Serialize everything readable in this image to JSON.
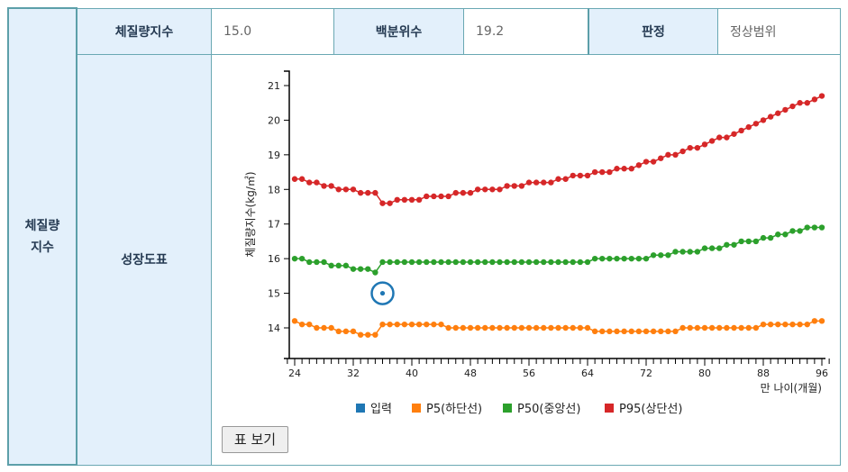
{
  "summary": {
    "group_label": "체질량\n지수",
    "bmi_label": "체질량지수",
    "bmi_value": "15.0",
    "percentile_label": "백분위수",
    "percentile_value": "19.2",
    "judgement_label": "판정",
    "judgement_value": "정상범위",
    "chart_label": "성장도표"
  },
  "table_button": "표 보기",
  "colors": {
    "border": "#5c9fa9",
    "header_bg": "#e3f0fb",
    "input": "#1f77b4",
    "p5": "#ff7f0e",
    "p50": "#2ca02c",
    "p95": "#d62728"
  },
  "chart_data": {
    "type": "line",
    "ylabel": "체질량지수(kg/㎡)",
    "xlabel": "만 나이(개월)",
    "x_range": [
      24,
      96
    ],
    "y_ticks": [
      14,
      15,
      16,
      17,
      18,
      19,
      20,
      21
    ],
    "x_ticks": [
      24,
      32,
      40,
      48,
      56,
      64,
      72,
      80,
      88,
      96
    ],
    "grid": false,
    "legend_position": "bottom",
    "legend": [
      "입력",
      "P5(하단선)",
      "P50(중앙선)",
      "P95(상단선)"
    ],
    "input_point": {
      "name": "입력",
      "x": 36,
      "y": 15.0
    },
    "x": [
      24,
      25,
      26,
      27,
      28,
      29,
      30,
      31,
      32,
      33,
      34,
      35,
      36,
      37,
      38,
      39,
      40,
      41,
      42,
      43,
      44,
      45,
      46,
      47,
      48,
      49,
      50,
      51,
      52,
      53,
      54,
      55,
      56,
      57,
      58,
      59,
      60,
      61,
      62,
      63,
      64,
      65,
      66,
      67,
      68,
      69,
      70,
      71,
      72,
      73,
      74,
      75,
      76,
      77,
      78,
      79,
      80,
      81,
      82,
      83,
      84,
      85,
      86,
      87,
      88,
      89,
      90,
      91,
      92,
      93,
      94,
      95,
      96
    ],
    "series": [
      {
        "name": "P5(하단선)",
        "values": [
          14.2,
          14.1,
          14.1,
          14.0,
          14.0,
          14.0,
          13.9,
          13.9,
          13.9,
          13.8,
          13.8,
          13.8,
          14.1,
          14.1,
          14.1,
          14.1,
          14.1,
          14.1,
          14.1,
          14.1,
          14.1,
          14.0,
          14.0,
          14.0,
          14.0,
          14.0,
          14.0,
          14.0,
          14.0,
          14.0,
          14.0,
          14.0,
          14.0,
          14.0,
          14.0,
          14.0,
          14.0,
          14.0,
          14.0,
          14.0,
          14.0,
          13.9,
          13.9,
          13.9,
          13.9,
          13.9,
          13.9,
          13.9,
          13.9,
          13.9,
          13.9,
          13.9,
          13.9,
          14.0,
          14.0,
          14.0,
          14.0,
          14.0,
          14.0,
          14.0,
          14.0,
          14.0,
          14.0,
          14.0,
          14.1,
          14.1,
          14.1,
          14.1,
          14.1,
          14.1,
          14.1,
          14.2,
          14.2
        ]
      },
      {
        "name": "P50(중앙선)",
        "values": [
          16.0,
          16.0,
          15.9,
          15.9,
          15.9,
          15.8,
          15.8,
          15.8,
          15.7,
          15.7,
          15.7,
          15.6,
          15.9,
          15.9,
          15.9,
          15.9,
          15.9,
          15.9,
          15.9,
          15.9,
          15.9,
          15.9,
          15.9,
          15.9,
          15.9,
          15.9,
          15.9,
          15.9,
          15.9,
          15.9,
          15.9,
          15.9,
          15.9,
          15.9,
          15.9,
          15.9,
          15.9,
          15.9,
          15.9,
          15.9,
          15.9,
          16.0,
          16.0,
          16.0,
          16.0,
          16.0,
          16.0,
          16.0,
          16.0,
          16.1,
          16.1,
          16.1,
          16.2,
          16.2,
          16.2,
          16.2,
          16.3,
          16.3,
          16.3,
          16.4,
          16.4,
          16.5,
          16.5,
          16.5,
          16.6,
          16.6,
          16.7,
          16.7,
          16.8,
          16.8,
          16.9,
          16.9,
          16.9
        ]
      },
      {
        "name": "P95(상단선)",
        "values": [
          18.3,
          18.3,
          18.2,
          18.2,
          18.1,
          18.1,
          18.0,
          18.0,
          18.0,
          17.9,
          17.9,
          17.9,
          17.6,
          17.6,
          17.7,
          17.7,
          17.7,
          17.7,
          17.8,
          17.8,
          17.8,
          17.8,
          17.9,
          17.9,
          17.9,
          18.0,
          18.0,
          18.0,
          18.0,
          18.1,
          18.1,
          18.1,
          18.2,
          18.2,
          18.2,
          18.2,
          18.3,
          18.3,
          18.4,
          18.4,
          18.4,
          18.5,
          18.5,
          18.5,
          18.6,
          18.6,
          18.6,
          18.7,
          18.8,
          18.8,
          18.9,
          19.0,
          19.0,
          19.1,
          19.2,
          19.2,
          19.3,
          19.4,
          19.5,
          19.5,
          19.6,
          19.7,
          19.8,
          19.9,
          20.0,
          20.1,
          20.2,
          20.3,
          20.4,
          20.5,
          20.5,
          20.6,
          20.7
        ]
      }
    ]
  }
}
